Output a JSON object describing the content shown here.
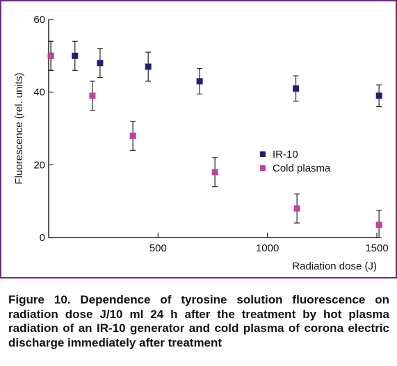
{
  "figure": {
    "caption": "Figure 10. Dependence of tyrosine solution fluorescence on radiation dose J/10 ml 24 h after the treatment by hot plasma radiation of an IR-10 generator and cold plasma of corona electric discharge immediately after treatment",
    "frame_color": "#6b2c7d"
  },
  "chart_data": {
    "type": "scatter",
    "title": "",
    "xlabel": "Radiation dose (J)",
    "ylabel": "Fluorescence (rel. units)",
    "xlim": [
      0,
      1500
    ],
    "ylim": [
      0,
      60
    ],
    "x_ticks": [
      500,
      1000,
      1500
    ],
    "y_ticks": [
      0,
      20,
      40,
      60
    ],
    "grid": false,
    "legend_position": "center-right",
    "error_bars": true,
    "series": [
      {
        "name": "IR-10",
        "color": "#1f1f7a",
        "marker": "square",
        "x": [
          10,
          120,
          235,
          455,
          690,
          1130,
          1510
        ],
        "y": [
          50,
          50,
          48,
          47,
          43,
          41,
          39
        ],
        "err": [
          4,
          4,
          4,
          4,
          3.5,
          3.5,
          3
        ]
      },
      {
        "name": "Cold plasma",
        "color": "#c0449b",
        "marker": "square",
        "x": [
          10,
          200,
          385,
          760,
          1135,
          1510
        ],
        "y": [
          50,
          39,
          28,
          18,
          8,
          3.5
        ],
        "err": [
          4,
          4,
          4,
          4,
          4,
          4
        ]
      }
    ]
  }
}
